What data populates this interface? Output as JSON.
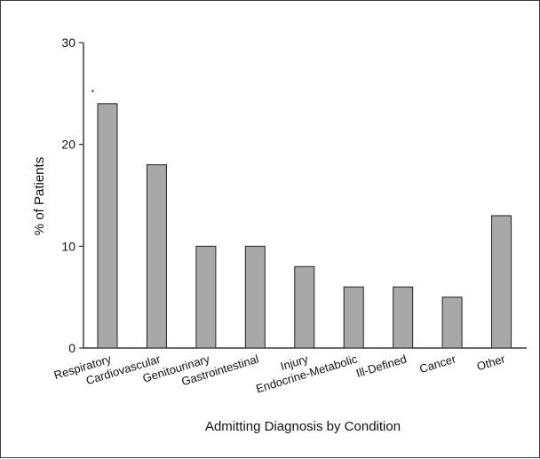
{
  "chart_data": {
    "type": "bar",
    "title": "",
    "xlabel": "Admitting Diagnosis by Condition",
    "ylabel": "% of Patients",
    "ylim": [
      0,
      30
    ],
    "yticks": [
      "0",
      "10",
      "20",
      "30"
    ],
    "categories": [
      "Respiratory",
      "Cardiovascular",
      "Genitourinary",
      "Gastrointestinal",
      "Injury",
      "Endocrine-Metabolic",
      "Ill-Defined",
      "Cancer",
      "Other"
    ],
    "values": [
      24,
      18,
      10,
      10,
      8,
      6,
      6,
      5,
      13
    ],
    "colors": {
      "bar_fill": "#a8a8a8",
      "bar_stroke": "#222222",
      "axis": "#111111"
    },
    "grid": false,
    "legend": "none"
  }
}
